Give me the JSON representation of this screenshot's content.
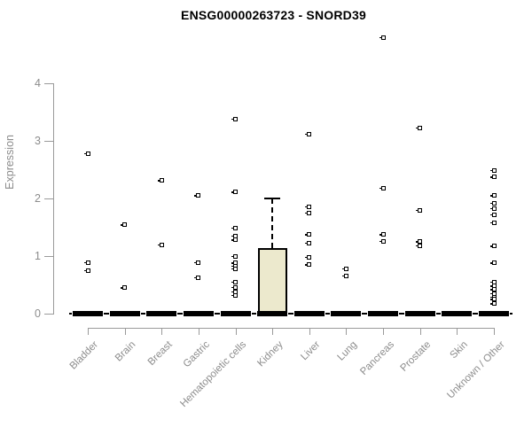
{
  "chart_data": {
    "type": "boxplot",
    "title": "ENSG00000263723 - SNORD39",
    "xlabel": "",
    "ylabel": "Expression",
    "ylim": [
      0,
      4
    ],
    "yticks": [
      0,
      1,
      2,
      3,
      4
    ],
    "grid": false,
    "legend": null,
    "marker_style": "open-square",
    "categories": [
      "Bladder",
      "Brain",
      "Breast",
      "Gastric",
      "Hematopoietic cells",
      "Kidney",
      "Liver",
      "Lung",
      "Pancreas",
      "Prostate",
      "Skin",
      "Unknown / Other"
    ],
    "series": [
      {
        "category": "Bladder",
        "box": {
          "median": 0,
          "q1": 0,
          "q3": 0,
          "whisker_low": 0,
          "whisker_high": 0
        },
        "points": [
          2.78,
          0.89,
          0.75
        ]
      },
      {
        "category": "Brain",
        "box": {
          "median": 0,
          "q1": 0,
          "q3": 0,
          "whisker_low": 0,
          "whisker_high": 0
        },
        "points": [
          1.54,
          0.45
        ]
      },
      {
        "category": "Breast",
        "box": {
          "median": 0,
          "q1": 0,
          "q3": 0,
          "whisker_low": 0,
          "whisker_high": 0
        },
        "points": [
          2.31,
          1.2
        ]
      },
      {
        "category": "Gastric",
        "box": {
          "median": 0,
          "q1": 0,
          "q3": 0,
          "whisker_low": 0,
          "whisker_high": 0
        },
        "points": [
          2.05,
          0.89,
          0.63
        ]
      },
      {
        "category": "Hematopoietic cells",
        "box": {
          "median": 0,
          "q1": 0,
          "q3": 0,
          "whisker_low": 0,
          "whisker_high": 0
        },
        "points": [
          3.38,
          2.11,
          1.49,
          1.35,
          1.28,
          1.0,
          0.88,
          0.83,
          0.78,
          0.55,
          0.46,
          0.38,
          0.32
        ]
      },
      {
        "category": "Kidney",
        "box": {
          "median": 0,
          "q1": 0,
          "q3": 1.14,
          "whisker_low": 0,
          "whisker_high": 2.0
        },
        "points": []
      },
      {
        "category": "Liver",
        "box": {
          "median": 0,
          "q1": 0,
          "q3": 0,
          "whisker_low": 0,
          "whisker_high": 0
        },
        "points": [
          3.12,
          1.86,
          1.75,
          1.37,
          1.23,
          0.98,
          0.85
        ]
      },
      {
        "category": "Lung",
        "box": {
          "median": 0,
          "q1": 0,
          "q3": 0,
          "whisker_low": 0,
          "whisker_high": 0
        },
        "points": [
          0.78,
          0.66
        ]
      },
      {
        "category": "Pancreas",
        "box": {
          "median": 0,
          "q1": 0,
          "q3": 0,
          "whisker_low": 0,
          "whisker_high": 0
        },
        "points": [
          4.8,
          2.18,
          1.37,
          1.26
        ]
      },
      {
        "category": "Prostate",
        "box": {
          "median": 0,
          "q1": 0,
          "q3": 0,
          "whisker_low": 0,
          "whisker_high": 0
        },
        "points": [
          3.23,
          1.8,
          1.25,
          1.18
        ]
      },
      {
        "category": "Skin",
        "box": {
          "median": 0,
          "q1": 0,
          "q3": 0,
          "whisker_low": 0,
          "whisker_high": 0
        },
        "points": []
      },
      {
        "category": "Unknown / Other",
        "box": {
          "median": 0,
          "q1": 0,
          "q3": 0,
          "whisker_low": 0,
          "whisker_high": 0
        },
        "points": [
          2.49,
          2.37,
          2.05,
          1.92,
          1.83,
          1.72,
          1.58,
          1.17,
          0.88,
          0.55,
          0.48,
          0.42,
          0.35,
          0.29,
          0.25,
          0.17
        ]
      }
    ],
    "colors": {
      "box_fill": "#ece9cd",
      "box_border": "#000000",
      "marker": "#000000",
      "median_bar": "#000000",
      "axis": "#9a9a9a",
      "tick_label": "#8c8c8c",
      "title": "#000000"
    }
  }
}
